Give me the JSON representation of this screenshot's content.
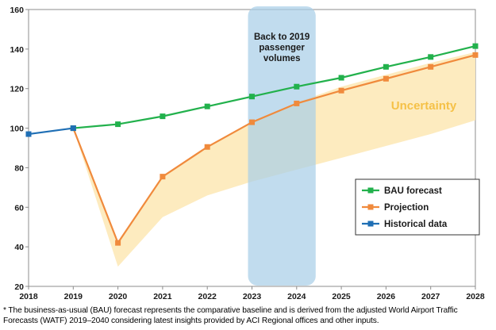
{
  "chart_data": {
    "type": "line",
    "x": [
      2018,
      2019,
      2020,
      2021,
      2022,
      2023,
      2024,
      2025,
      2026,
      2027,
      2028
    ],
    "ylim": [
      20,
      160
    ],
    "yticks": [
      20,
      40,
      60,
      80,
      100,
      120,
      140,
      160
    ],
    "grid": false,
    "legend_position": "bottom-right",
    "series": [
      {
        "name": "BAU forecast",
        "color": "#22b14c",
        "marker": "square",
        "x": [
          2019,
          2020,
          2021,
          2022,
          2023,
          2024,
          2025,
          2026,
          2027,
          2028
        ],
        "values": [
          100,
          102,
          106,
          111,
          116,
          121,
          125.5,
          131,
          136,
          141.5
        ]
      },
      {
        "name": "Projection",
        "color": "#f08a3c",
        "marker": "square",
        "x": [
          2019,
          2020,
          2021,
          2022,
          2023,
          2024,
          2025,
          2026,
          2027,
          2028
        ],
        "values": [
          100,
          42,
          75.5,
          90.5,
          103,
          112.5,
          119,
          125,
          131,
          137
        ]
      },
      {
        "name": "Historical data",
        "color": "#1f6fb5",
        "marker": "square",
        "x": [
          2018,
          2019
        ],
        "values": [
          97,
          100
        ]
      }
    ],
    "uncertainty_band": {
      "label": "Uncertainty",
      "color": "#fde9b8",
      "label_color": "#f5c147",
      "x": [
        2019,
        2020,
        2021,
        2022,
        2023,
        2024,
        2025,
        2026,
        2027,
        2028
      ],
      "upper": [
        100,
        42,
        75.5,
        90.5,
        103,
        113,
        121,
        127,
        133,
        138.5
      ],
      "lower": [
        100,
        30,
        55,
        66,
        73,
        79,
        85,
        91,
        97,
        104
      ]
    },
    "highlight": {
      "label": "Back to 2019 passenger volumes",
      "label_lines": [
        "Back to 2019",
        "passenger",
        "volumes"
      ],
      "x_range": [
        2023,
        2024
      ],
      "color": "#a9cfe8"
    }
  },
  "footnote": "* The business-as-usual (BAU) forecast represents the comparative baseline and is derived from the adjusted World Airport Traffic Forecasts (WATF) 2019–2040 considering latest insights provided by ACI Regional offices and other inputs."
}
